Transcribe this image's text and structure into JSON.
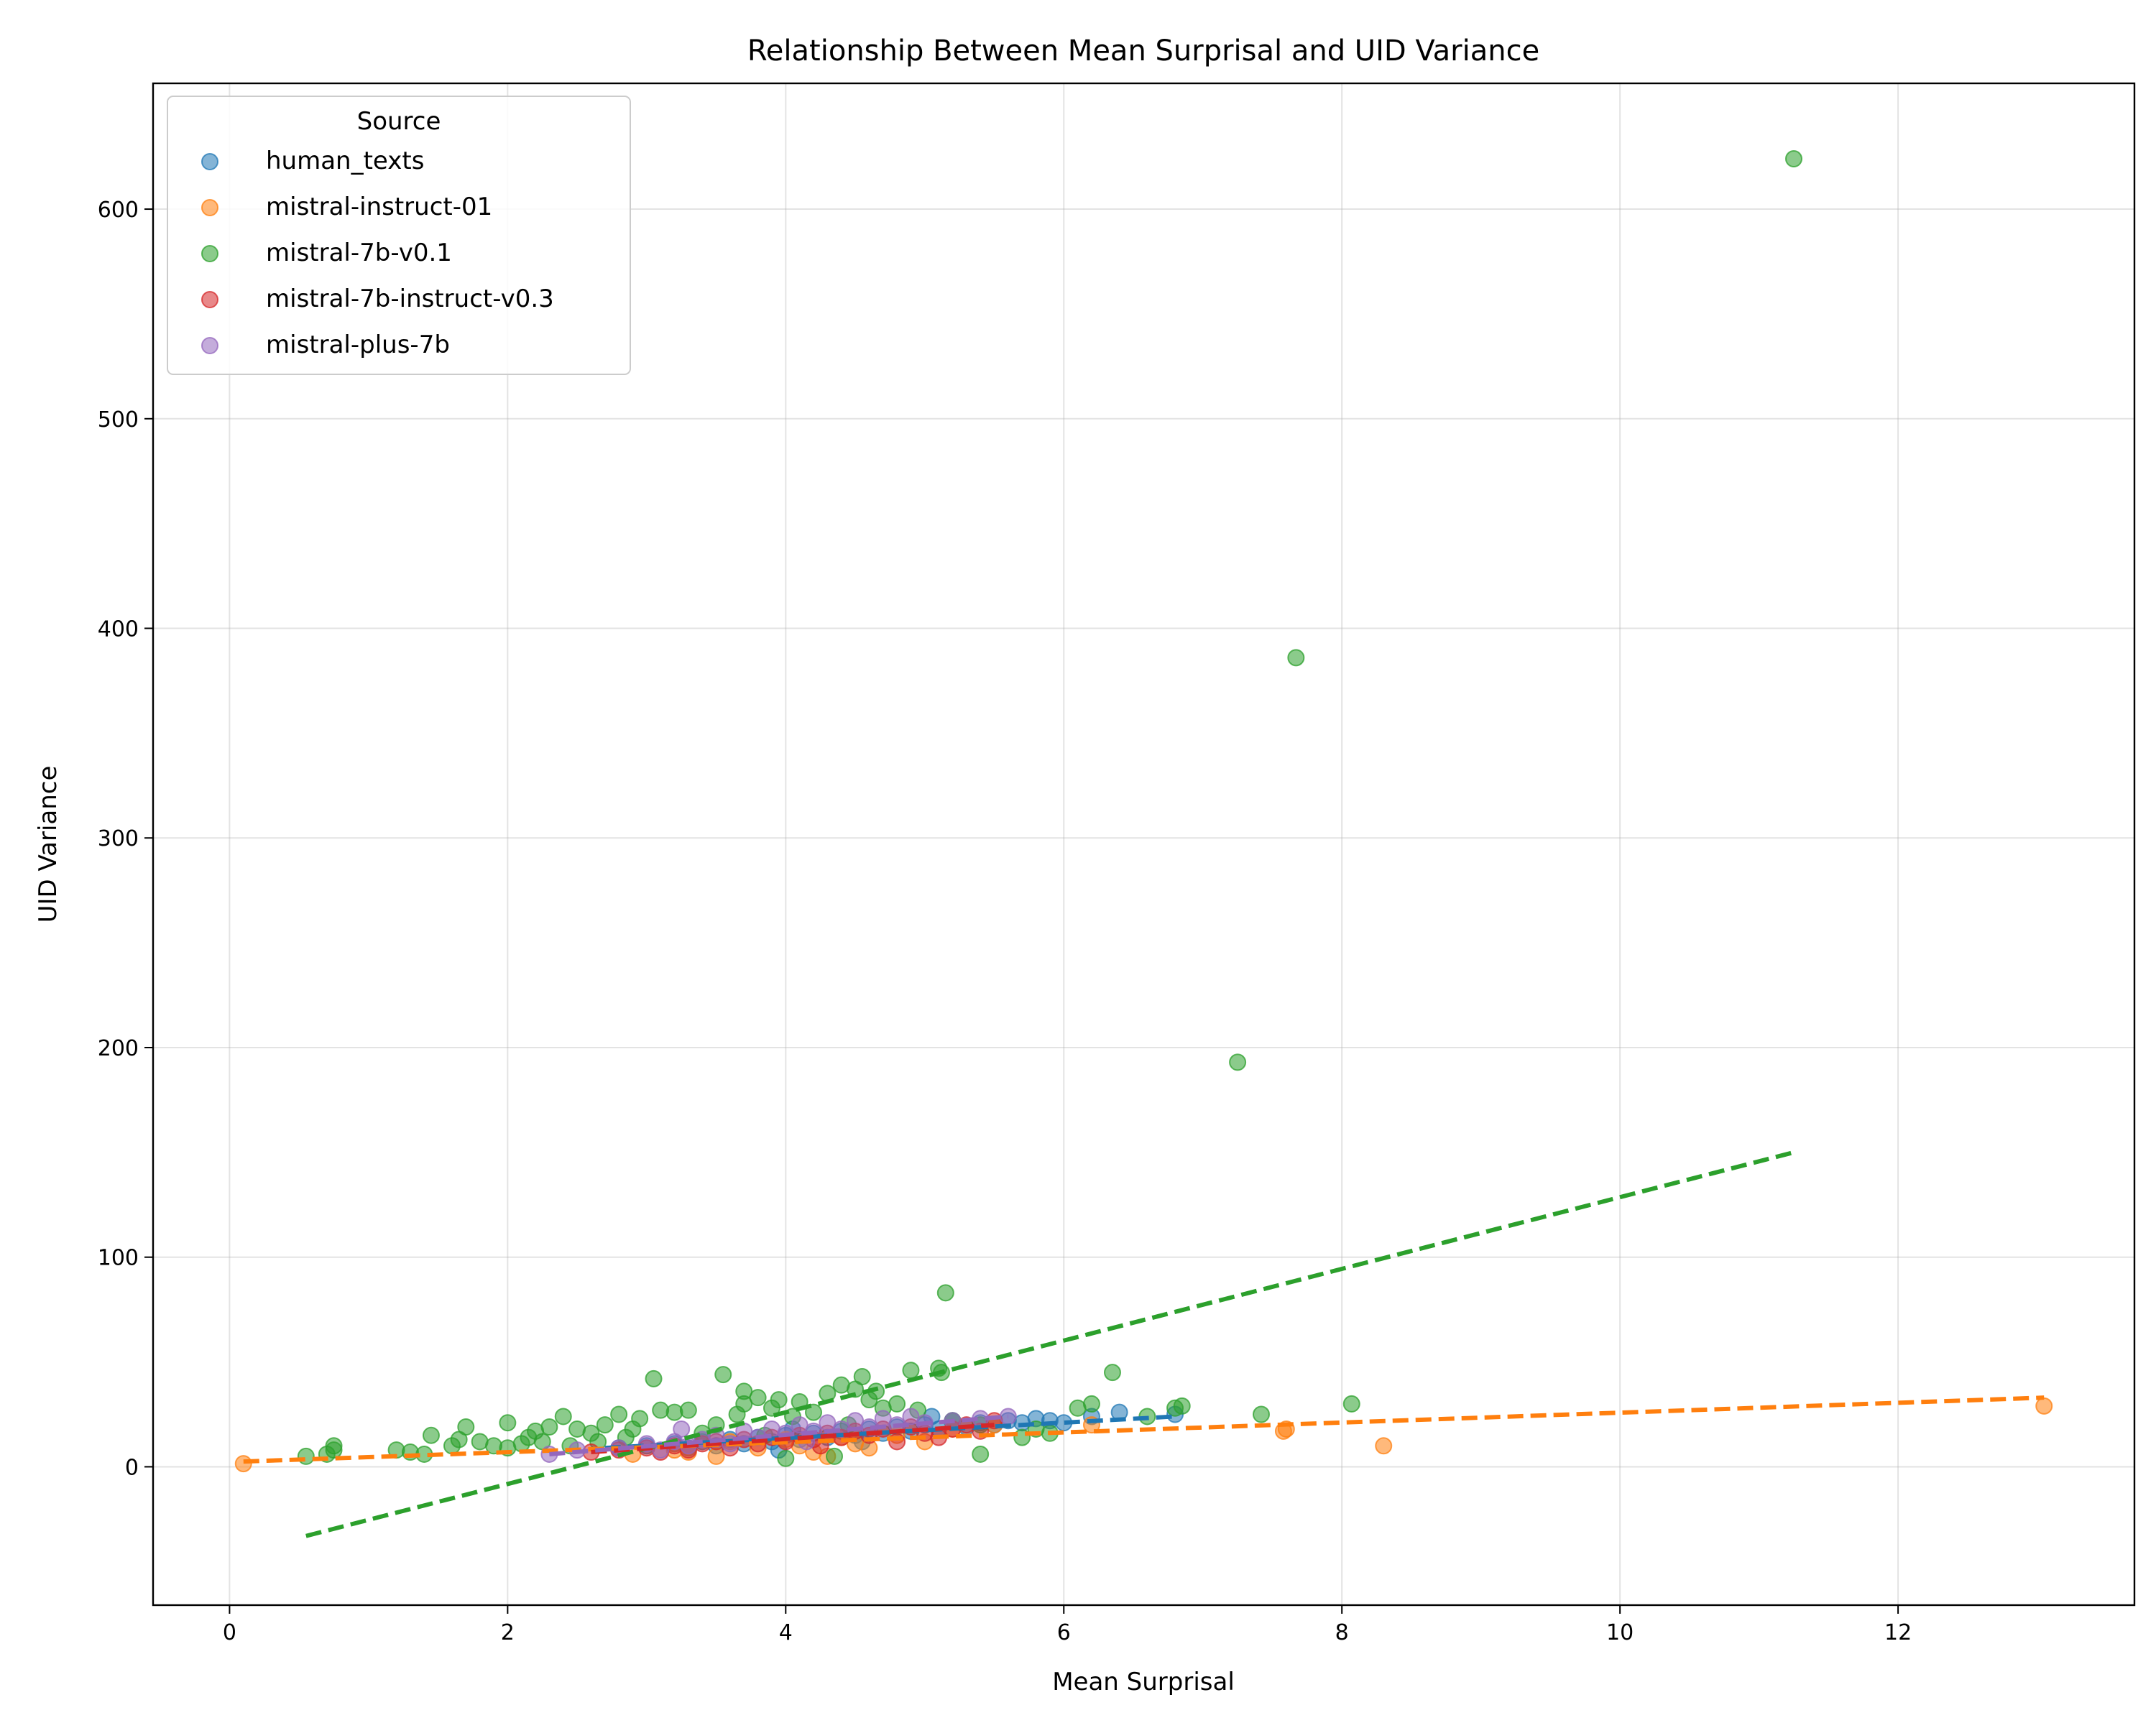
{
  "chart_data": {
    "type": "scatter",
    "title": "Relationship Between Mean Surprisal and UID Variance",
    "xlabel": "Mean Surprisal",
    "ylabel": "UID Variance",
    "xlim": [
      -0.55,
      13.7
    ],
    "ylim": [
      -66,
      660
    ],
    "xticks": [
      0,
      2,
      4,
      6,
      8,
      10,
      12
    ],
    "yticks": [
      0,
      100,
      200,
      300,
      400,
      500,
      600
    ],
    "grid": true,
    "legend": {
      "title": "Source",
      "placement": "top-left"
    },
    "series": [
      {
        "name": "human_texts",
        "color": "#1f77b4",
        "trend": {
          "x": [
            2.7,
            6.8
          ],
          "y": [
            9,
            24
          ]
        },
        "points": [
          [
            2.8,
            9
          ],
          [
            3.0,
            10
          ],
          [
            3.2,
            11
          ],
          [
            3.4,
            12
          ],
          [
            3.5,
            10
          ],
          [
            3.6,
            13
          ],
          [
            3.7,
            11
          ],
          [
            3.8,
            14
          ],
          [
            3.9,
            12
          ],
          [
            4.0,
            15
          ],
          [
            4.1,
            13
          ],
          [
            4.2,
            16
          ],
          [
            4.3,
            14
          ],
          [
            4.4,
            17
          ],
          [
            4.5,
            15
          ],
          [
            4.6,
            18
          ],
          [
            4.7,
            16
          ],
          [
            4.8,
            19
          ],
          [
            4.9,
            17
          ],
          [
            5.0,
            20
          ],
          [
            5.1,
            18
          ],
          [
            5.2,
            22
          ],
          [
            5.3,
            19
          ],
          [
            5.4,
            21
          ],
          [
            5.5,
            20
          ],
          [
            5.6,
            22
          ],
          [
            5.7,
            21
          ],
          [
            5.8,
            23
          ],
          [
            5.9,
            22
          ],
          [
            6.0,
            21
          ],
          [
            6.2,
            24
          ],
          [
            6.4,
            26
          ],
          [
            6.8,
            25
          ],
          [
            3.3,
            9
          ],
          [
            4.05,
            18
          ],
          [
            4.55,
            12
          ],
          [
            5.05,
            24
          ],
          [
            3.95,
            8
          ]
        ]
      },
      {
        "name": "mistral-instruct-01",
        "color": "#ff7f0e",
        "trend": {
          "x": [
            0.1,
            13.05
          ],
          "y": [
            2.5,
            33
          ]
        },
        "points": [
          [
            0.1,
            1.5
          ],
          [
            2.9,
            6
          ],
          [
            3.2,
            8
          ],
          [
            3.5,
            5
          ],
          [
            3.6,
            12
          ],
          [
            3.8,
            9
          ],
          [
            4.0,
            13
          ],
          [
            4.2,
            7
          ],
          [
            4.3,
            5
          ],
          [
            4.4,
            14
          ],
          [
            4.5,
            11
          ],
          [
            4.6,
            9
          ],
          [
            4.8,
            15
          ],
          [
            5.0,
            12
          ],
          [
            5.2,
            18
          ],
          [
            5.5,
            20
          ],
          [
            6.2,
            20
          ],
          [
            7.58,
            17
          ],
          [
            7.6,
            18
          ],
          [
            8.3,
            10
          ],
          [
            13.05,
            29
          ],
          [
            3.3,
            7
          ],
          [
            4.1,
            10
          ]
        ]
      },
      {
        "name": "mistral-7b-v0.1",
        "color": "#2ca02c",
        "trend": {
          "x": [
            0.55,
            11.25
          ],
          "y": [
            -33,
            150
          ]
        },
        "points": [
          [
            0.55,
            5
          ],
          [
            0.7,
            6
          ],
          [
            0.75,
            8
          ],
          [
            0.75,
            10
          ],
          [
            1.2,
            8
          ],
          [
            1.3,
            7
          ],
          [
            1.4,
            6
          ],
          [
            1.45,
            15
          ],
          [
            1.6,
            10
          ],
          [
            1.65,
            13
          ],
          [
            1.7,
            19
          ],
          [
            1.8,
            12
          ],
          [
            1.9,
            10
          ],
          [
            2.0,
            21
          ],
          [
            2.0,
            9
          ],
          [
            2.1,
            11
          ],
          [
            2.15,
            14
          ],
          [
            2.2,
            17
          ],
          [
            2.25,
            12
          ],
          [
            2.3,
            19
          ],
          [
            2.4,
            24
          ],
          [
            2.45,
            10
          ],
          [
            2.5,
            18
          ],
          [
            2.6,
            16
          ],
          [
            2.65,
            12
          ],
          [
            2.7,
            20
          ],
          [
            2.8,
            25
          ],
          [
            2.85,
            14
          ],
          [
            2.9,
            18
          ],
          [
            2.95,
            23
          ],
          [
            3.05,
            42
          ],
          [
            3.1,
            27
          ],
          [
            3.2,
            26
          ],
          [
            3.3,
            27
          ],
          [
            3.4,
            16
          ],
          [
            3.5,
            20
          ],
          [
            3.55,
            44
          ],
          [
            3.65,
            25
          ],
          [
            3.7,
            30
          ],
          [
            3.7,
            36
          ],
          [
            3.8,
            33
          ],
          [
            3.85,
            15
          ],
          [
            3.9,
            28
          ],
          [
            3.95,
            32
          ],
          [
            4.0,
            4
          ],
          [
            4.05,
            24
          ],
          [
            4.1,
            31
          ],
          [
            4.2,
            26
          ],
          [
            4.3,
            35
          ],
          [
            4.35,
            5
          ],
          [
            4.4,
            39
          ],
          [
            4.45,
            20
          ],
          [
            4.5,
            37
          ],
          [
            4.55,
            43
          ],
          [
            4.6,
            32
          ],
          [
            4.65,
            36
          ],
          [
            4.7,
            28
          ],
          [
            4.8,
            30
          ],
          [
            4.9,
            46
          ],
          [
            4.95,
            27
          ],
          [
            5.1,
            47
          ],
          [
            5.12,
            45
          ],
          [
            5.15,
            83
          ],
          [
            5.2,
            22
          ],
          [
            5.4,
            20
          ],
          [
            5.4,
            6
          ],
          [
            5.7,
            14
          ],
          [
            5.8,
            18
          ],
          [
            5.9,
            16
          ],
          [
            6.1,
            28
          ],
          [
            6.2,
            30
          ],
          [
            6.35,
            45
          ],
          [
            6.6,
            24
          ],
          [
            6.8,
            28
          ],
          [
            6.85,
            29
          ],
          [
            7.25,
            193
          ],
          [
            7.42,
            25
          ],
          [
            7.67,
            386
          ],
          [
            8.07,
            30
          ],
          [
            11.25,
            624
          ]
        ]
      },
      {
        "name": "mistral-7b-instruct-v0.3",
        "color": "#d62728",
        "trend": {
          "x": [
            2.6,
            5.5
          ],
          "y": [
            7,
            20
          ]
        },
        "points": [
          [
            2.6,
            7
          ],
          [
            2.8,
            8
          ],
          [
            3.0,
            9
          ],
          [
            3.2,
            10
          ],
          [
            3.3,
            8
          ],
          [
            3.4,
            11
          ],
          [
            3.5,
            12
          ],
          [
            3.6,
            9
          ],
          [
            3.7,
            13
          ],
          [
            3.8,
            11
          ],
          [
            3.9,
            14
          ],
          [
            4.0,
            12
          ],
          [
            4.1,
            15
          ],
          [
            4.2,
            13
          ],
          [
            4.3,
            16
          ],
          [
            4.4,
            14
          ],
          [
            4.5,
            17
          ],
          [
            4.6,
            15
          ],
          [
            4.7,
            18
          ],
          [
            4.8,
            12
          ],
          [
            4.9,
            19
          ],
          [
            5.0,
            16
          ],
          [
            5.1,
            14
          ],
          [
            5.2,
            18
          ],
          [
            5.3,
            20
          ],
          [
            5.4,
            17
          ],
          [
            5.5,
            22
          ],
          [
            3.1,
            7
          ],
          [
            4.25,
            10
          ]
        ]
      },
      {
        "name": "mistral-plus-7b",
        "color": "#9467bd",
        "trend": {
          "x": [
            2.3,
            5.6
          ],
          "y": [
            6,
            24
          ]
        },
        "points": [
          [
            2.3,
            6
          ],
          [
            2.5,
            8
          ],
          [
            2.8,
            9
          ],
          [
            3.0,
            11
          ],
          [
            3.1,
            8
          ],
          [
            3.2,
            12
          ],
          [
            3.3,
            10
          ],
          [
            3.4,
            13
          ],
          [
            3.5,
            15
          ],
          [
            3.6,
            11
          ],
          [
            3.7,
            17
          ],
          [
            3.8,
            14
          ],
          [
            3.9,
            18
          ],
          [
            4.0,
            16
          ],
          [
            4.1,
            20
          ],
          [
            4.2,
            17
          ],
          [
            4.3,
            21
          ],
          [
            4.4,
            18
          ],
          [
            4.5,
            22
          ],
          [
            4.6,
            19
          ],
          [
            4.7,
            23
          ],
          [
            4.8,
            20
          ],
          [
            4.9,
            24
          ],
          [
            5.0,
            21
          ],
          [
            5.2,
            22
          ],
          [
            5.4,
            23
          ],
          [
            5.6,
            24
          ],
          [
            3.25,
            18
          ],
          [
            4.15,
            12
          ]
        ]
      }
    ]
  }
}
